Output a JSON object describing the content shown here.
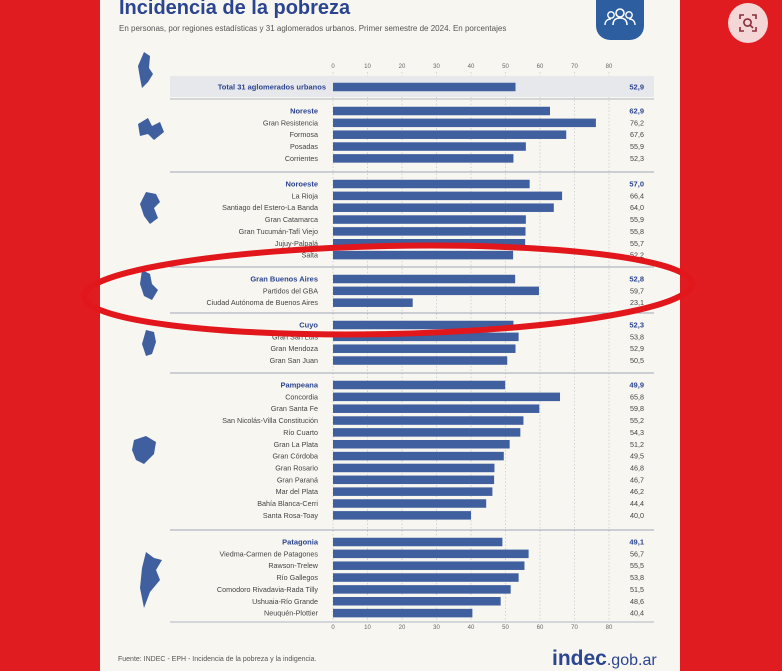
{
  "title": "Incidencia de la pobreza",
  "subtitle": "En personas, por regiones estadísticas y 31 aglomerados urbanos. Primer semestre de 2024. En porcentajes",
  "source": "Fuente: INDEC - EPH - Incidencia de la pobreza y la indigencia.",
  "brand": {
    "main": "indec",
    "suffix": ".gob.ar"
  },
  "colors": {
    "bar": "#3f5f9e",
    "accent": "#2c4590",
    "highlight_ring": "#e2171c",
    "background": "#e11c20",
    "paper": "#f7f6f1"
  },
  "icons": [
    "zoom-lens-icon",
    "people-logo-icon",
    "argentina-map-icon"
  ],
  "chart_data": {
    "type": "bar",
    "orientation": "horizontal",
    "axis_ticks": [
      "0",
      "10",
      "20",
      "30",
      "40",
      "50",
      "60",
      "70",
      "80"
    ],
    "xlim": [
      0,
      80
    ],
    "total": {
      "label": "Total 31 aglomerados urbanos",
      "value": 52.9,
      "display": "52,9"
    },
    "groups": [
      {
        "name": "Noreste",
        "value": 62.9,
        "display": "62,9",
        "items": [
          {
            "label": "Gran Resistencia",
            "value": 76.2,
            "display": "76,2"
          },
          {
            "label": "Formosa",
            "value": 67.6,
            "display": "67,6"
          },
          {
            "label": "Posadas",
            "value": 55.9,
            "display": "55,9"
          },
          {
            "label": "Corrientes",
            "value": 52.3,
            "display": "52,3"
          }
        ]
      },
      {
        "name": "Noroeste",
        "value": 57.0,
        "display": "57,0",
        "items": [
          {
            "label": "La Rioja",
            "value": 66.4,
            "display": "66,4"
          },
          {
            "label": "Santiago del Estero-La Banda",
            "value": 64.0,
            "display": "64,0"
          },
          {
            "label": "Gran Catamarca",
            "value": 55.9,
            "display": "55,9"
          },
          {
            "label": "Gran Tucumán-Tafí Viejo",
            "value": 55.8,
            "display": "55,8"
          },
          {
            "label": "Jujuy-Palpalá",
            "value": 55.7,
            "display": "55,7"
          },
          {
            "label": "Salta",
            "value": 52.2,
            "display": "52,2"
          }
        ]
      },
      {
        "name": "Gran Buenos Aires",
        "value": 52.8,
        "display": "52,8",
        "items": [
          {
            "label": "Partidos del GBA",
            "value": 59.7,
            "display": "59,7"
          },
          {
            "label": "Ciudad Autónoma de Buenos Aires",
            "value": 23.1,
            "display": "23,1"
          }
        ]
      },
      {
        "name": "Cuyo",
        "value": 52.3,
        "display": "52,3",
        "items": [
          {
            "label": "Gran San Luis",
            "value": 53.8,
            "display": "53,8"
          },
          {
            "label": "Gran Mendoza",
            "value": 52.9,
            "display": "52,9"
          },
          {
            "label": "Gran San Juan",
            "value": 50.5,
            "display": "50,5"
          }
        ]
      },
      {
        "name": "Pampeana",
        "value": 49.9,
        "display": "49,9",
        "items": [
          {
            "label": "Concordia",
            "value": 65.8,
            "display": "65,8"
          },
          {
            "label": "Gran Santa Fe",
            "value": 59.8,
            "display": "59,8"
          },
          {
            "label": "San Nicolás-Villa Constitución",
            "value": 55.2,
            "display": "55,2"
          },
          {
            "label": "Río Cuarto",
            "value": 54.3,
            "display": "54,3"
          },
          {
            "label": "Gran La Plata",
            "value": 51.2,
            "display": "51,2"
          },
          {
            "label": "Gran Córdoba",
            "value": 49.5,
            "display": "49,5"
          },
          {
            "label": "Gran Rosario",
            "value": 46.8,
            "display": "46,8"
          },
          {
            "label": "Gran Paraná",
            "value": 46.7,
            "display": "46,7"
          },
          {
            "label": "Mar del Plata",
            "value": 46.2,
            "display": "46,2"
          },
          {
            "label": "Bahía Blanca-Cerri",
            "value": 44.4,
            "display": "44,4"
          },
          {
            "label": "Santa Rosa-Toay",
            "value": 40.0,
            "display": "40,0"
          }
        ]
      },
      {
        "name": "Patagonia",
        "value": 49.1,
        "display": "49,1",
        "items": [
          {
            "label": "Viedma-Carmen de Patagones",
            "value": 56.7,
            "display": "56,7"
          },
          {
            "label": "Rawson-Trelew",
            "value": 55.5,
            "display": "55,5"
          },
          {
            "label": "Río Gallegos",
            "value": 53.8,
            "display": "53,8"
          },
          {
            "label": "Comodoro Rivadavia-Rada Tilly",
            "value": 51.5,
            "display": "51,5"
          },
          {
            "label": "Ushuaia-Río Grande",
            "value": 48.6,
            "display": "48,6"
          },
          {
            "label": "Neuquén-Plottier",
            "value": 40.4,
            "display": "40,4"
          }
        ]
      }
    ],
    "highlighted_group": "Gran Buenos Aires"
  }
}
